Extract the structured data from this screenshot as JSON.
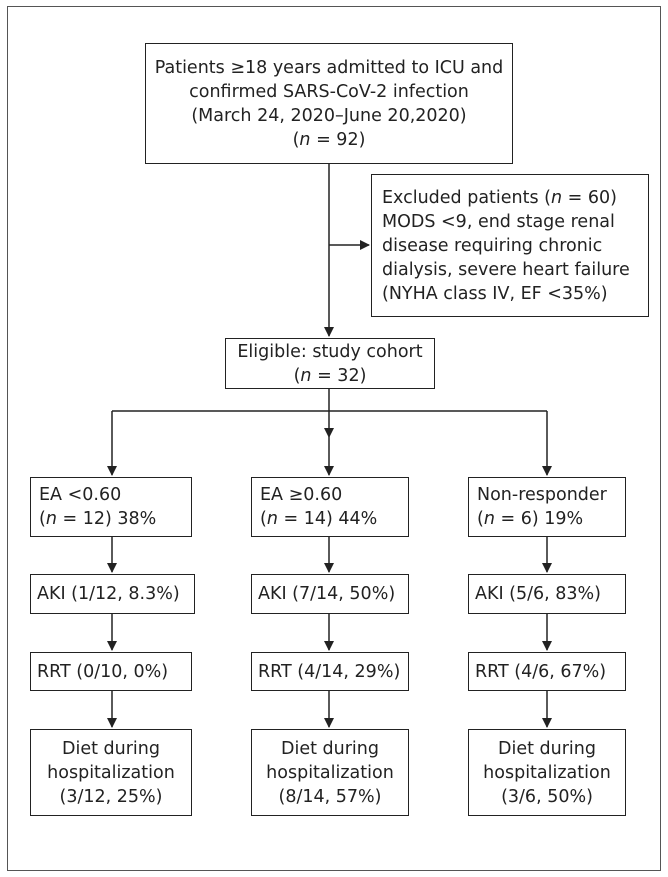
{
  "top_box": {
    "line1": "Patients ≥18 years admitted to ICU and",
    "line2": "confirmed SARS-CoV-2 infection",
    "line3": "(March 24, 2020–June 20,2020)",
    "n_pre": "(",
    "n_var": "n",
    "n_post": " = 92)"
  },
  "excluded_box": {
    "line1_pre": "Excluded patients (",
    "line1_var": "n",
    "line1_post": " = 60)",
    "line2": "MODS <9, end stage renal",
    "line3": "disease requiring chronic",
    "line4": "dialysis, severe heart failure",
    "line5": "(NYHA class IV, EF <35%)"
  },
  "cohort_box": {
    "line1": "Eligible: study cohort",
    "n_pre": "(",
    "n_var": "n",
    "n_post": " = 32)"
  },
  "groups": [
    {
      "header_line1": "EA <0.60",
      "n_pre": "(",
      "n_var": "n",
      "n_post": " = 12) 38%",
      "aki": "AKI (1/12, 8.3%)",
      "rrt": "RRT (0/10, 0%)",
      "diet_line1": "Diet during",
      "diet_line2": "hospitalization",
      "diet_line3": "(3/12, 25%)"
    },
    {
      "header_line1": "EA ≥0.60",
      "n_pre": "(",
      "n_var": "n",
      "n_post": " = 14) 44%",
      "aki": "AKI (7/14, 50%)",
      "rrt": "RRT (4/14, 29%)",
      "diet_line1": "Diet during",
      "diet_line2": "hospitalization",
      "diet_line3": "(8/14, 57%)"
    },
    {
      "header_line1": "Non-responder",
      "n_pre": "(",
      "n_var": "n",
      "n_post": " = 6) 19%",
      "aki": "AKI (5/6, 83%)",
      "rrt": "RRT (4/6, 67%)",
      "diet_line1": "Diet during",
      "diet_line2": "hospitalization",
      "diet_line3": "(3/6, 50%)"
    }
  ]
}
